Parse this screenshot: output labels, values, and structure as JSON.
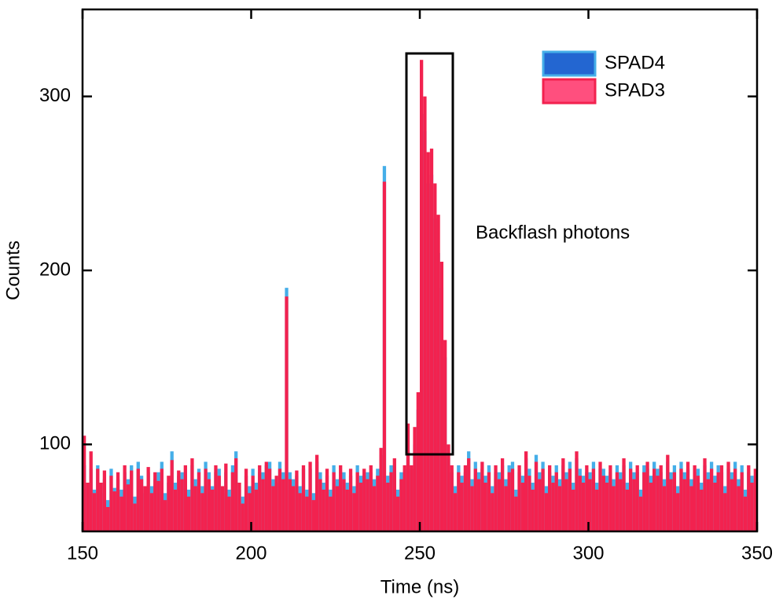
{
  "chart_data": {
    "type": "histogram",
    "xlabel": "Time (ns)",
    "ylabel": "Counts",
    "annotation": "Backflash photons",
    "xlim": [
      150,
      350
    ],
    "ylim": [
      50,
      350
    ],
    "xticks": [
      150,
      200,
      250,
      300,
      350
    ],
    "yticks": [
      100,
      200,
      300
    ],
    "legend": "upper right",
    "bins": [
      150,
      151,
      152,
      153,
      154,
      155,
      156,
      157,
      158,
      159,
      160,
      161,
      162,
      163,
      164,
      165,
      166,
      167,
      168,
      169,
      170,
      171,
      172,
      173,
      174,
      175,
      176,
      177,
      178,
      179,
      180,
      181,
      182,
      183,
      184,
      185,
      186,
      187,
      188,
      189,
      190,
      191,
      192,
      193,
      194,
      195,
      196,
      197,
      198,
      199,
      200,
      201,
      202,
      203,
      204,
      205,
      206,
      207,
      208,
      209,
      210,
      211,
      212,
      213,
      214,
      215,
      216,
      217,
      218,
      219,
      220,
      221,
      222,
      223,
      224,
      225,
      226,
      227,
      228,
      229,
      230,
      231,
      232,
      233,
      234,
      235,
      236,
      237,
      238,
      239,
      240,
      241,
      242,
      243,
      244,
      245,
      246,
      247,
      248,
      249,
      250,
      251,
      252,
      253,
      254,
      255,
      256,
      257,
      258,
      259,
      260,
      261,
      262,
      263,
      264,
      265,
      266,
      267,
      268,
      269,
      270,
      271,
      272,
      273,
      274,
      275,
      276,
      277,
      278,
      279,
      280,
      281,
      282,
      283,
      284,
      285,
      286,
      287,
      288,
      289,
      290,
      291,
      292,
      293,
      294,
      295,
      296,
      297,
      298,
      299,
      300,
      301,
      302,
      303,
      304,
      305,
      306,
      307,
      308,
      309,
      310,
      311,
      312,
      313,
      314,
      315,
      316,
      317,
      318,
      319,
      320,
      321,
      322,
      323,
      324,
      325,
      326,
      327,
      328,
      329,
      330,
      331,
      332,
      333,
      334,
      335,
      336,
      337,
      338,
      339,
      340,
      341,
      342,
      343,
      344,
      345,
      346,
      347,
      348,
      349,
      350
    ],
    "series": [
      {
        "name": "SPAD4",
        "color": "#45aee8",
        "legend_color": "#2366d1",
        "values": [
          88,
          76,
          86,
          74,
          88,
          72,
          80,
          68,
          86,
          75,
          80,
          74,
          84,
          80,
          88,
          70,
          90,
          82,
          72,
          84,
          76,
          80,
          84,
          90,
          72,
          78,
          96,
          78,
          82,
          84,
          84,
          74,
          88,
          80,
          86,
          76,
          90,
          84,
          76,
          84,
          86,
          72,
          84,
          74,
          88,
          96,
          74,
          70,
          82,
          76,
          86,
          78,
          84,
          84,
          88,
          90,
          80,
          78,
          90,
          84,
          190,
          84,
          80,
          82,
          76,
          86,
          74,
          86,
          72,
          90,
          84,
          78,
          82,
          74,
          88,
          80,
          84,
          84,
          78,
          82,
          76,
          88,
          82,
          82,
          84,
          84,
          80,
          86,
          94,
          260,
          82,
          88,
          88,
          74,
          84,
          86,
          96,
          86,
          100,
          120,
          290,
          280,
          250,
          255,
          230,
          210,
          190,
          150,
          92,
          84,
          76,
          88,
          82,
          84,
          96,
          80,
          90,
          84,
          86,
          82,
          88,
          76,
          84,
          84,
          88,
          80,
          88,
          90,
          74,
          84,
          82,
          92,
          86,
          78,
          94,
          84,
          90,
          76,
          84,
          82,
          88,
          80,
          88,
          84,
          90,
          78,
          92,
          86,
          82,
          84,
          84,
          90,
          78,
          86,
          86,
          82,
          84,
          80,
          88,
          84,
          88,
          78,
          90,
          84,
          84,
          74,
          88,
          86,
          82,
          90,
          86,
          84,
          80,
          90,
          84,
          88,
          76,
          90,
          84,
          86,
          80,
          84,
          86,
          78,
          88,
          84,
          90,
          82,
          88,
          84,
          76,
          86,
          84,
          90,
          80,
          88,
          74,
          84,
          82,
          80
        ]
      },
      {
        "name": "SPAD3",
        "color": "#f2224f",
        "legend_color": "#ff4f7e",
        "values": [
          105,
          78,
          96,
          72,
          86,
          78,
          85,
          64,
          82,
          73,
          84,
          70,
          88,
          77,
          85,
          66,
          86,
          80,
          76,
          87,
          72,
          84,
          79,
          86,
          68,
          82,
          91,
          74,
          85,
          80,
          88,
          70,
          92,
          76,
          84,
          72,
          86,
          80,
          74,
          88,
          82,
          76,
          89,
          70,
          84,
          92,
          78,
          66,
          86,
          72,
          82,
          74,
          88,
          80,
          90,
          86,
          76,
          82,
          86,
          80,
          185,
          80,
          76,
          85,
          72,
          88,
          70,
          90,
          68,
          94,
          80,
          74,
          86,
          70,
          84,
          76,
          88,
          80,
          74,
          86,
          72,
          84,
          78,
          86,
          80,
          88,
          76,
          82,
          98,
          251,
          78,
          84,
          92,
          70,
          80,
          88,
          112,
          88,
          110,
          130,
          321,
          300,
          268,
          270,
          250,
          232,
          205,
          160,
          100,
          88,
          72,
          84,
          78,
          88,
          92,
          76,
          86,
          80,
          90,
          78,
          84,
          72,
          88,
          80,
          92,
          76,
          84,
          86,
          70,
          88,
          78,
          96,
          82,
          74,
          90,
          80,
          86,
          72,
          88,
          78,
          84,
          76,
          92,
          80,
          86,
          74,
          96,
          82,
          78,
          88,
          80,
          86,
          74,
          90,
          82,
          78,
          88,
          76,
          84,
          80,
          92,
          74,
          86,
          80,
          88,
          70,
          84,
          90,
          78,
          86,
          82,
          88,
          76,
          94,
          80,
          84,
          72,
          86,
          80,
          90,
          76,
          88,
          82,
          74,
          92,
          80,
          86,
          78,
          84,
          88,
          72,
          90,
          80,
          86,
          76,
          84,
          70,
          88,
          78,
          86
        ]
      }
    ]
  }
}
